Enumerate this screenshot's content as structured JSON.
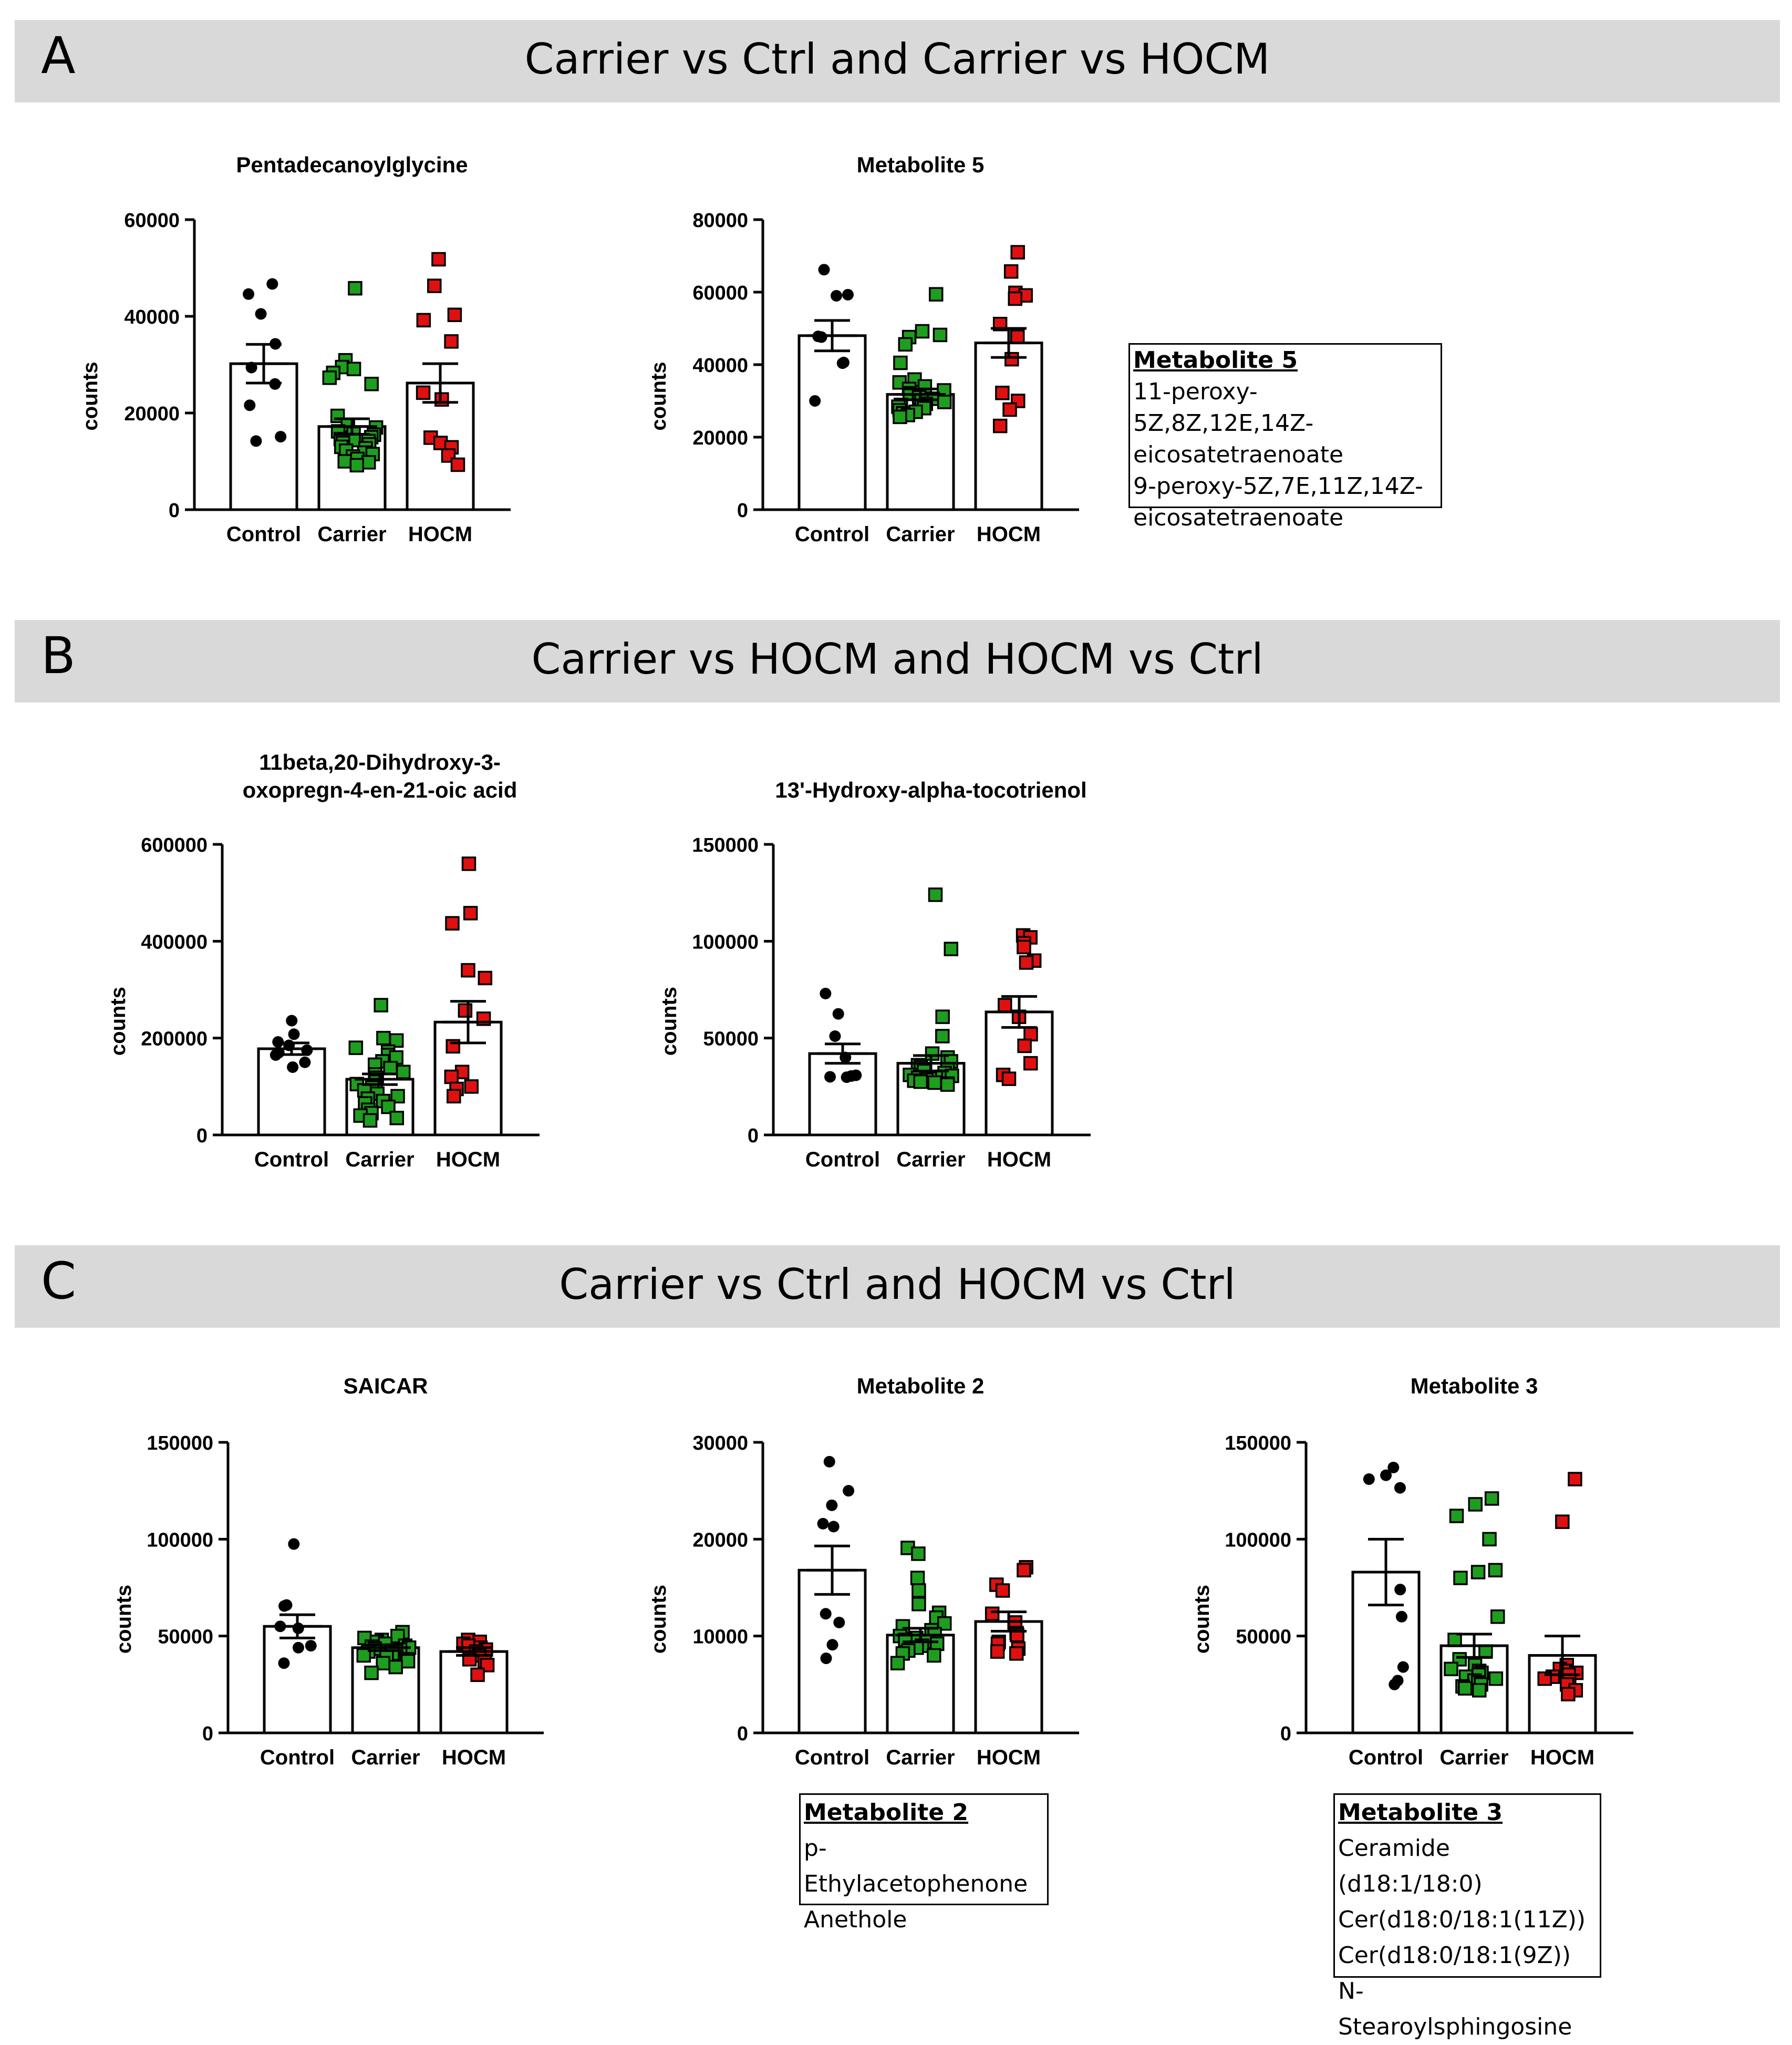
{
  "sections": [
    {
      "letter": "A",
      "title": "Carrier vs Ctrl and Carrier vs HOCM"
    },
    {
      "letter": "B",
      "title": "Carrier vs HOCM and HOCM vs Ctrl"
    },
    {
      "letter": "C",
      "title": "Carrier vs Ctrl and HOCM vs Ctrl"
    }
  ],
  "infoboxes": {
    "metabolite5": {
      "title": "Metabolite  5",
      "lines": [
        "11-peroxy-5Z,8Z,12E,14Z-",
        "eicosatetraenoate",
        "9-peroxy-5Z,7E,11Z,14Z-",
        "eicosatetraenoate"
      ]
    },
    "metabolite2": {
      "title": "Metabolite  2",
      "lines": [
        "p-Ethylacetophenone",
        "Anethole"
      ]
    },
    "metabolite3": {
      "title": "Metabolite  3",
      "lines": [
        "Ceramide  (d18:1/18:0)",
        "Cer(d18:0/18:1(11Z))",
        "Cer(d18:0/18:1(9Z))",
        "N-Stearoylsphingosine"
      ]
    }
  },
  "colors": {
    "Control": "#000000",
    "Carrier": "#1e9e1e",
    "HOCM": "#e01010",
    "banner": "#d9d9d9"
  },
  "chart_data": [
    {
      "type": "bar",
      "title": "Pentadecanoylglycine",
      "title_lines": [
        "Pentadecanoylglycine"
      ],
      "ylabel": "counts",
      "categories": [
        "Control",
        "Carrier",
        "HOCM"
      ],
      "ylim": [
        0,
        60000
      ],
      "yticks": [
        0,
        20000,
        40000,
        60000
      ],
      "tick_labels": [
        "0",
        "20000",
        "40000",
        "60000"
      ],
      "means": [
        30200,
        17200,
        26200
      ],
      "sem": [
        4000,
        1600,
        4000
      ],
      "points": [
        [
          46700,
          44600,
          40500,
          34300,
          29400,
          26000,
          21600,
          15100,
          14200
        ],
        [
          45800,
          30900,
          29500,
          29100,
          28300,
          27300,
          26000,
          19400,
          17500,
          17000,
          16200,
          15700,
          15500,
          15000,
          14600,
          14400,
          14200,
          13800,
          13500,
          13000,
          12700,
          12200,
          11800,
          11500,
          11000,
          10500,
          10000,
          9800,
          9200
        ],
        [
          51800,
          46300,
          40300,
          39200,
          34800,
          24200,
          22800,
          14900,
          13800,
          12900,
          11200,
          9300
        ]
      ]
    },
    {
      "type": "bar",
      "title": "Metabolite 5",
      "title_lines": [
        "Metabolite 5"
      ],
      "ylabel": "counts",
      "categories": [
        "Control",
        "Carrier",
        "HOCM"
      ],
      "ylim": [
        0,
        80000
      ],
      "yticks": [
        0,
        20000,
        40000,
        60000,
        80000
      ],
      "tick_labels": [
        "0",
        "20000",
        "40000",
        "60000",
        "80000"
      ],
      "means": [
        48000,
        31800,
        46000
      ],
      "sem": [
        4200,
        1500,
        4000
      ],
      "points": [
        [
          66200,
          59300,
          59000,
          47800,
          47600,
          40600,
          40400,
          30000
        ],
        [
          59400,
          49200,
          48200,
          47600,
          45600,
          40500,
          35900,
          35100,
          34000,
          33300,
          32900,
          32100,
          31600,
          31000,
          30600,
          30100,
          29700,
          29200,
          28900,
          28400,
          28000,
          27400,
          27000,
          26600,
          26100,
          25600
        ],
        [
          71000,
          65700,
          59800,
          59100,
          58200,
          51200,
          47700,
          41500,
          32200,
          30000,
          27600,
          23100
        ]
      ]
    },
    {
      "type": "bar",
      "title": "11beta,20-Dihydroxy-3-oxopregn-4-en-21-oic acid",
      "title_lines": [
        "11beta,20-Dihydroxy-3-",
        "oxopregn-4-en-21-oic acid"
      ],
      "ylabel": "counts",
      "categories": [
        "Control",
        "Carrier",
        "HOCM"
      ],
      "ylim": [
        0,
        600000
      ],
      "yticks": [
        0,
        200000,
        400000,
        600000
      ],
      "tick_labels": [
        "0",
        "200000",
        "400000",
        "600000"
      ],
      "means": [
        178000,
        115000,
        233000
      ],
      "sem": [
        12000,
        11000,
        43000
      ],
      "points": [
        [
          236000,
          208000,
          192000,
          185000,
          175000,
          170000,
          165000,
          150000,
          140000
        ],
        [
          268000,
          200000,
          195000,
          180000,
          172000,
          165000,
          160000,
          152000,
          145000,
          138000,
          130000,
          125000,
          118000,
          110000,
          105000,
          98000,
          92000,
          85000,
          80000,
          75000,
          70000,
          65000,
          58000,
          52000,
          45000,
          40000,
          35000,
          30000
        ],
        [
          560000,
          458000,
          437000,
          340000,
          324000,
          257000,
          240000,
          183000,
          130000,
          120000,
          100000,
          95000,
          80000
        ]
      ]
    },
    {
      "type": "bar",
      "title": "13'-Hydroxy-alpha-tocotrienol",
      "title_lines": [
        "13'-Hydroxy-alpha-tocotrienol"
      ],
      "ylabel": "counts",
      "categories": [
        "Control",
        "Carrier",
        "HOCM"
      ],
      "ylim": [
        0,
        150000
      ],
      "yticks": [
        0,
        50000,
        100000,
        150000
      ],
      "tick_labels": [
        "0",
        "50000",
        "100000",
        "150000"
      ],
      "means": [
        42000,
        37000,
        63500
      ],
      "sem": [
        5000,
        4000,
        8000
      ],
      "points": [
        [
          73000,
          62500,
          51000,
          40000,
          30800,
          30400,
          30000,
          29800
        ],
        [
          124000,
          96000,
          61000,
          51000,
          42000,
          40000,
          38000,
          36000,
          35000,
          34000,
          33000,
          32000,
          31000,
          30500,
          30000,
          29500,
          29000,
          28500,
          28000,
          27500,
          27000,
          26500,
          26000
        ],
        [
          103000,
          102000,
          99000,
          97000,
          90000,
          89000,
          67000,
          61000,
          52000,
          46000,
          37000,
          31000,
          29000
        ]
      ]
    },
    {
      "type": "bar",
      "title": "SAICAR",
      "title_lines": [
        "SAICAR"
      ],
      "ylabel": "counts",
      "categories": [
        "Control",
        "Carrier",
        "HOCM"
      ],
      "ylim": [
        0,
        150000
      ],
      "yticks": [
        0,
        50000,
        100000,
        150000
      ],
      "tick_labels": [
        "0",
        "50000",
        "100000",
        "150000"
      ],
      "means": [
        55000,
        44000,
        42000
      ],
      "sem": [
        6000,
        1500,
        2000
      ],
      "points": [
        [
          97500,
          66000,
          65500,
          55000,
          54000,
          45000,
          44000,
          36000
        ],
        [
          52000,
          50000,
          49000,
          48000,
          47000,
          46000,
          45000,
          44500,
          44000,
          43500,
          43000,
          42000,
          41000,
          40000,
          39000,
          38000,
          37000,
          36000,
          34000,
          31000
        ],
        [
          48000,
          47000,
          46000,
          45000,
          44000,
          43000,
          42000,
          40000,
          38000,
          37000,
          35000,
          30000
        ]
      ]
    },
    {
      "type": "bar",
      "title": "Metabolite 2",
      "title_lines": [
        "Metabolite 2"
      ],
      "ylabel": "counts",
      "categories": [
        "Control",
        "Carrier",
        "HOCM"
      ],
      "ylim": [
        0,
        30000
      ],
      "yticks": [
        0,
        10000,
        20000,
        30000
      ],
      "tick_labels": [
        "0",
        "10000",
        "20000",
        "30000"
      ],
      "means": [
        16800,
        10100,
        11500
      ],
      "sem": [
        2500,
        700,
        1000
      ],
      "points": [
        [
          28000,
          25000,
          23500,
          21600,
          21300,
          12300,
          11400,
          9100,
          7700
        ],
        [
          19100,
          18500,
          16000,
          14700,
          13300,
          12400,
          11900,
          11300,
          11000,
          10600,
          10200,
          10000,
          9800,
          9600,
          9400,
          9200,
          9000,
          8800,
          8500,
          8200,
          8000,
          7200
        ],
        [
          17100,
          16800,
          15300,
          14700,
          12300,
          11400,
          10300,
          10100,
          9400,
          9200,
          8700,
          8400,
          8200
        ]
      ]
    },
    {
      "type": "bar",
      "title": "Metabolite 3",
      "title_lines": [
        "Metabolite 3"
      ],
      "ylabel": "counts",
      "categories": [
        "Control",
        "Carrier",
        "HOCM"
      ],
      "ylim": [
        0,
        150000
      ],
      "yticks": [
        0,
        50000,
        100000,
        150000
      ],
      "tick_labels": [
        "0",
        "50000",
        "100000",
        "150000"
      ],
      "means": [
        83000,
        45000,
        40000
      ],
      "sem": [
        17000,
        6000,
        10000
      ],
      "points": [
        [
          137000,
          133000,
          131000,
          126500,
          74000,
          60000,
          34000,
          27000,
          25000
        ],
        [
          121000,
          118000,
          112000,
          100000,
          84000,
          83000,
          80000,
          60000,
          48000,
          42000,
          38000,
          35000,
          33000,
          32000,
          31000,
          30000,
          29000,
          28000,
          27000,
          26000,
          25000,
          24000,
          23000,
          22000
        ],
        [
          131000,
          109000,
          35000,
          33000,
          32000,
          31000,
          30000,
          29000,
          28000,
          27000,
          25000,
          22000,
          20000
        ]
      ]
    }
  ]
}
